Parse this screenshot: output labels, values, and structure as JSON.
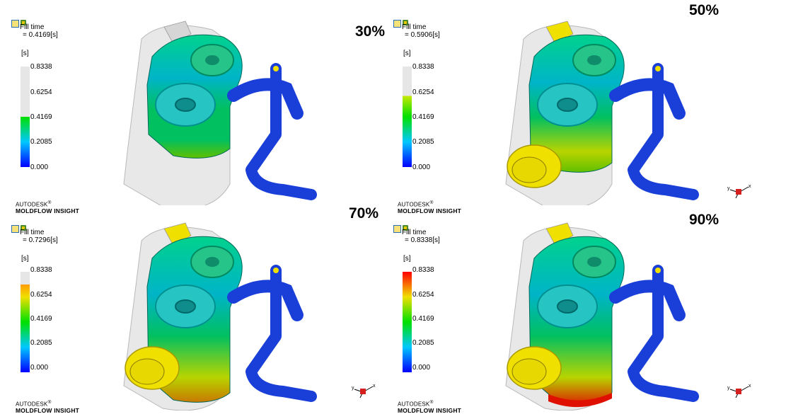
{
  "brand": {
    "line1": "AUTODESK",
    "line2": "MOLDFLOW INSIGHT",
    "reg": "®"
  },
  "panels": [
    {
      "title": "Fill time",
      "value": "= 0.4169[s]",
      "unit": "[s]",
      "percent": "30%",
      "ticks": [
        "0.8338",
        "0.6254",
        "0.4169",
        "0.2085",
        "0.000"
      ],
      "filled_fraction": 0.5
    },
    {
      "title": "Fill time",
      "value": "= 0.5906[s]",
      "unit": "[s]",
      "percent": "50%",
      "ticks": [
        "0.8338",
        "0.6254",
        "0.4169",
        "0.2085",
        "0.000"
      ],
      "filled_fraction": 0.708
    },
    {
      "title": "Fill time",
      "value": "= 0.7296[s]",
      "unit": "[s]",
      "percent": "70%",
      "ticks": [
        "0.8338",
        "0.6254",
        "0.4169",
        "0.2085",
        "0.000"
      ],
      "filled_fraction": 0.875
    },
    {
      "title": "Fill time",
      "value": "= 0.8338[s]",
      "unit": "[s]",
      "percent": "90%",
      "ticks": [
        "0.8338",
        "0.6254",
        "0.4169",
        "0.2085",
        "0.000"
      ],
      "filled_fraction": 1.0
    }
  ],
  "colors": {
    "empty": "#e6e6e6",
    "scale_top": "#ff0000",
    "scale_bottom": "#0000ff",
    "runner": "#1a3fd8",
    "gate": "#f0e000",
    "ghost": "#d6d6d6"
  },
  "icons": [
    "plot-properties-icon",
    "result-icon",
    "view-axes-icon"
  ]
}
